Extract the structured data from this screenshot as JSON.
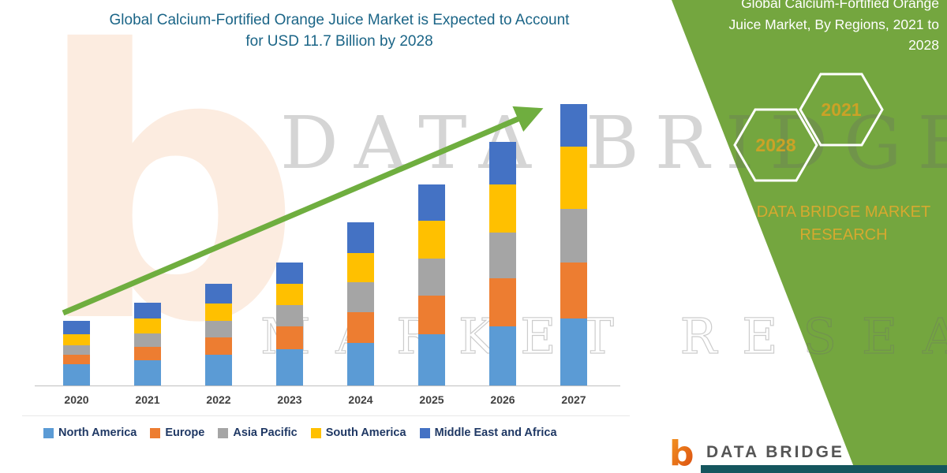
{
  "header": {
    "title_line1": "Global Calcium-Fortified Orange Juice Market is Expected to Account",
    "title_line2": "for USD 11.7 Billion by 2028"
  },
  "chart_data": {
    "type": "bar",
    "stacked": true,
    "title": "Global Calcium-Fortified Orange Juice Market is Expected to Account for USD 11.7 Billion by 2028",
    "units": "USD Billion (estimated from bar heights; value axis not shown)",
    "categories": [
      "2020",
      "2021",
      "2022",
      "2023",
      "2024",
      "2025",
      "2026",
      "2027"
    ],
    "series": [
      {
        "name": "North America",
        "color": "#5B9BD5",
        "values": [
          0.8,
          0.95,
          1.15,
          1.35,
          1.6,
          1.9,
          2.2,
          2.5
        ]
      },
      {
        "name": "Europe",
        "color": "#ED7D31",
        "values": [
          0.35,
          0.5,
          0.65,
          0.85,
          1.15,
          1.45,
          1.8,
          2.1
        ]
      },
      {
        "name": "Asia Pacific",
        "color": "#A5A5A5",
        "values": [
          0.35,
          0.5,
          0.6,
          0.8,
          1.1,
          1.4,
          1.7,
          2.0
        ]
      },
      {
        "name": "South America",
        "color": "#FFC000",
        "values": [
          0.4,
          0.55,
          0.65,
          0.8,
          1.1,
          1.4,
          1.8,
          2.3
        ]
      },
      {
        "name": "Middle East and Africa",
        "color": "#4472C4",
        "values": [
          0.5,
          0.6,
          0.75,
          0.8,
          1.15,
          1.35,
          1.6,
          1.6
        ]
      }
    ],
    "totals_estimated": [
      2.4,
      3.1,
      3.8,
      4.6,
      6.1,
      7.5,
      9.1,
      10.5
    ],
    "ylim": [
      0,
      11
    ],
    "grid": false,
    "value_axis_visible": false,
    "legend_position": "bottom",
    "annotations": [
      "upward green trend arrow across bars"
    ]
  },
  "side_panel": {
    "title_lines": [
      "Global Calcium-Fortified Orange",
      "Juice Market, By Regions, 2021 to",
      "2028"
    ],
    "hex_years": [
      "2028",
      "2021"
    ],
    "brand_line1": "DATA BRIDGE MARKET",
    "brand_line2": "RESEARCH",
    "panel_color": "#74A63F",
    "accent_gold": "#D6A92F"
  },
  "watermarks": {
    "big_letter": "b",
    "row1": "DATA BRIDGE",
    "row2": "MARKET RESEARCH"
  },
  "footer": {
    "logo_letter": "b",
    "brand": "DATA BRIDGE"
  }
}
